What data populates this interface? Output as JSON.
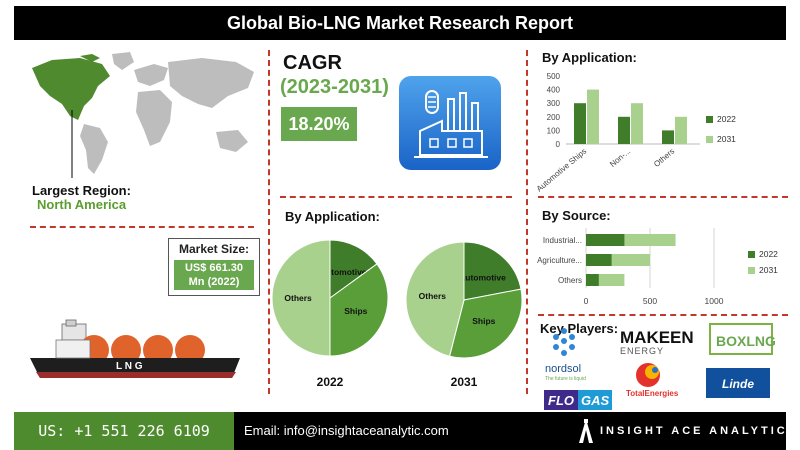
{
  "title": "Global Bio-LNG Market Research Report",
  "largest_region": {
    "label": "Largest Region:",
    "value": "North America"
  },
  "cagr": {
    "label": "CAGR",
    "years": "(2023-2031)",
    "value": "18.20%"
  },
  "market_size": {
    "label": "Market Size:",
    "value_line1": "US$ 661.30",
    "value_line2": "Mn (2022)"
  },
  "ship_label": "L N G",
  "pie_section": {
    "title": "By Application:"
  },
  "bar_app": {
    "title": "By Application:"
  },
  "bar_source": {
    "title": "By Source:"
  },
  "key_players": {
    "title": "Key Players:",
    "logos": [
      "MAKEEN",
      "ENERGY",
      "BOXLNG",
      "nordsol",
      "The future is liquid",
      "TotalEnergies",
      "FLO",
      "GAS",
      "Linde"
    ]
  },
  "footer": {
    "phone": "US: +1 551 226 6109",
    "email": "Email: info@insightaceanalytic.com",
    "brand": "INSIGHT ACE ANALYTIC"
  },
  "colors": {
    "dark_green": "#3f7d2a",
    "mid_green": "#5a9e3a",
    "light_green": "#a9d18e",
    "accent_red": "#c0392b"
  },
  "icons": [
    "world-map-icon",
    "factory-icon",
    "lng-ship-icon",
    "insightace-logo-icon"
  ],
  "chart_data": [
    {
      "type": "pie",
      "title": "By Application:",
      "label": "2022",
      "slices": [
        {
          "name": "Automotive",
          "value": 15
        },
        {
          "name": "Ships",
          "value": 35
        },
        {
          "name": "Others",
          "value": 50
        }
      ]
    },
    {
      "type": "pie",
      "title": "By Application:",
      "label": "2031",
      "slices": [
        {
          "name": "Automotive",
          "value": 22
        },
        {
          "name": "Ships",
          "value": 32
        },
        {
          "name": "Others",
          "value": 46
        }
      ]
    },
    {
      "type": "bar",
      "title": "By Application:",
      "categories": [
        "Automotive Ships",
        "Non-...",
        "Others"
      ],
      "series": [
        {
          "name": "2022",
          "values": [
            300,
            200,
            100
          ]
        },
        {
          "name": "2031",
          "values": [
            400,
            300,
            200
          ]
        }
      ],
      "ylim": [
        0,
        500
      ],
      "yticks": [
        "0",
        "100",
        "200",
        "300",
        "400",
        "500"
      ],
      "grid": false,
      "legend": "right"
    },
    {
      "type": "bar",
      "orientation": "horizontal",
      "title": "By Source:",
      "categories": [
        "Industrial...",
        "Agriculture...",
        "Others"
      ],
      "series": [
        {
          "name": "2022",
          "values": [
            300,
            200,
            100
          ]
        },
        {
          "name": "2031",
          "values": [
            700,
            500,
            300
          ]
        }
      ],
      "xlim": [
        0,
        1000
      ],
      "xticks": [
        "0",
        "500",
        "1000"
      ],
      "grid": true,
      "legend": "right"
    }
  ]
}
